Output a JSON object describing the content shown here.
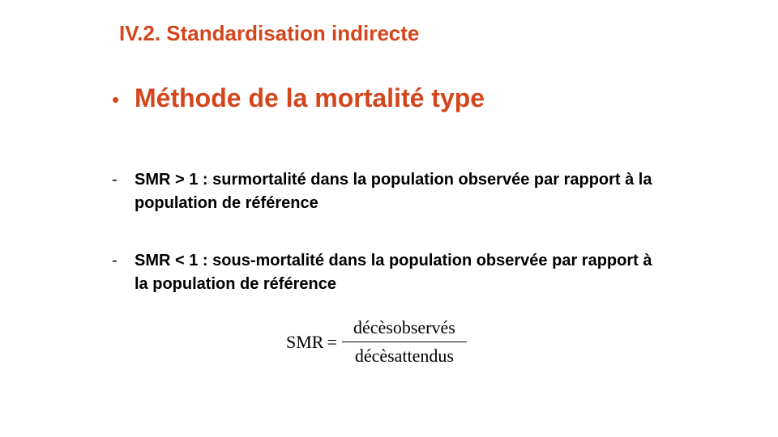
{
  "slide": {
    "title": "IV.2. Standardisation indirecte",
    "bullet": {
      "symbol": "•",
      "text": "Méthode de la mortalité type"
    },
    "items": [
      {
        "marker": "-",
        "text": "SMR > 1 : surmortalité dans la population observée par rapport à la population de référence"
      },
      {
        "marker": "-",
        "text": "SMR < 1 : sous-mortalité dans la population observée par rapport à la population de référence"
      }
    ],
    "formula": {
      "lhs": "SMR",
      "equals": "=",
      "numerator": "décèsobservés",
      "denominator": "décèsattendus"
    }
  },
  "colors": {
    "accent": "#d5451b",
    "text": "#000000",
    "background": "#ffffff"
  }
}
